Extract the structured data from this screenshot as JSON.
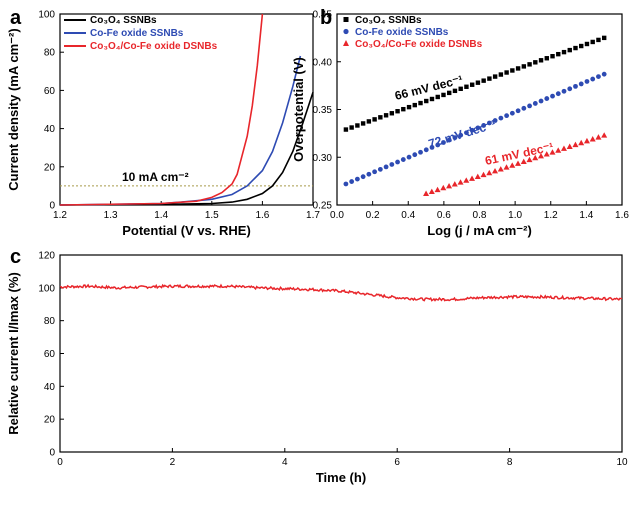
{
  "chart_data": [
    {
      "panel": "a",
      "type": "line",
      "xlabel": "Potential (V vs. RHE)",
      "ylabel": "Current density (mA cm⁻²)",
      "xlim": [
        1.2,
        1.7
      ],
      "ylim": [
        0,
        100
      ],
      "xticks": [
        "1.2",
        "1.3",
        "1.4",
        "1.5",
        "1.6",
        "1.7"
      ],
      "yticks": [
        "0",
        "20",
        "40",
        "60",
        "80",
        "100"
      ],
      "legend_position": "top-left",
      "annotation": "10 mA cm⁻²",
      "reference_line_y": 10,
      "series": [
        {
          "name": "Co₃O₄ SSNBs",
          "color": "#000000",
          "x": [
            1.2,
            1.4,
            1.5,
            1.54,
            1.57,
            1.6,
            1.62,
            1.64,
            1.66,
            1.68,
            1.7
          ],
          "y": [
            0,
            0.3,
            0.8,
            1.5,
            3,
            6,
            10,
            17,
            28,
            43,
            59
          ]
        },
        {
          "name": "Co-Fe oxide SSNBs",
          "color": "#2e4bb3",
          "x": [
            1.2,
            1.4,
            1.44,
            1.5,
            1.54,
            1.57,
            1.6,
            1.62,
            1.64,
            1.66,
            1.675
          ],
          "y": [
            0,
            0.8,
            1.5,
            3,
            5.5,
            10,
            18,
            28,
            43,
            62,
            78
          ]
        },
        {
          "name": "Co₃O₄/Co-Fe oxide DSNBs",
          "color": "#e8262b",
          "x": [
            1.2,
            1.4,
            1.47,
            1.5,
            1.52,
            1.54,
            1.55,
            1.57,
            1.58,
            1.59,
            1.6
          ],
          "y": [
            0,
            0.8,
            2,
            4,
            6.5,
            11,
            16,
            36,
            52,
            73,
            100
          ]
        }
      ]
    },
    {
      "panel": "b",
      "type": "scatter",
      "xlabel": "Log (j / mA cm⁻²)",
      "ylabel": "Overpotential (V)",
      "xlim": [
        0,
        1.6
      ],
      "ylim": [
        0.25,
        0.45
      ],
      "xticks": [
        "0.0",
        "0.2",
        "0.4",
        "0.6",
        "0.8",
        "1.0",
        "1.2",
        "1.4",
        "1.6"
      ],
      "yticks": [
        "0.25",
        "0.30",
        "0.35",
        "0.40",
        "0.45"
      ],
      "legend_position": "top-left",
      "series": [
        {
          "name": "Co₃O₄ SSNBs",
          "color": "#000000",
          "marker": "square",
          "x_range": [
            0.05,
            1.5
          ],
          "y_range": [
            0.329,
            0.425
          ],
          "slope_label": "66 mV dec⁻¹"
        },
        {
          "name": "Co-Fe oxide SSNBs",
          "color": "#2e4bb3",
          "marker": "circle",
          "x_range": [
            0.05,
            1.5
          ],
          "y_range": [
            0.272,
            0.387
          ],
          "slope_label": "72 mV dec⁻¹"
        },
        {
          "name": "Co₃O₄/Co-Fe oxide DSNBs",
          "color": "#e8262b",
          "marker": "triangle",
          "x_range": [
            0.5,
            1.5
          ],
          "y_range": [
            0.262,
            0.323
          ],
          "slope_label": "61 mV dec⁻¹"
        }
      ]
    },
    {
      "panel": "c",
      "type": "line",
      "xlabel": "Time (h)",
      "ylabel": "Relative current I/Imax (%)",
      "xlim": [
        0,
        10
      ],
      "ylim": [
        0,
        120
      ],
      "xticks": [
        "0",
        "2",
        "4",
        "6",
        "8",
        "10"
      ],
      "yticks": [
        "0",
        "20",
        "40",
        "60",
        "80",
        "100",
        "120"
      ],
      "series": [
        {
          "color": "#e8262b",
          "x": [
            0,
            0.5,
            1,
            1.5,
            2,
            2.5,
            3,
            3.5,
            4,
            4.5,
            5,
            5.5,
            6,
            6.5,
            7,
            7.5,
            8,
            8.5,
            9,
            9.5,
            10
          ],
          "y": [
            100.5,
            101,
            100,
            100.5,
            101,
            101,
            101,
            100,
            99.5,
            99,
            98,
            96,
            94,
            93,
            93,
            94,
            94.5,
            94.5,
            94,
            93.5,
            93
          ]
        }
      ]
    }
  ]
}
